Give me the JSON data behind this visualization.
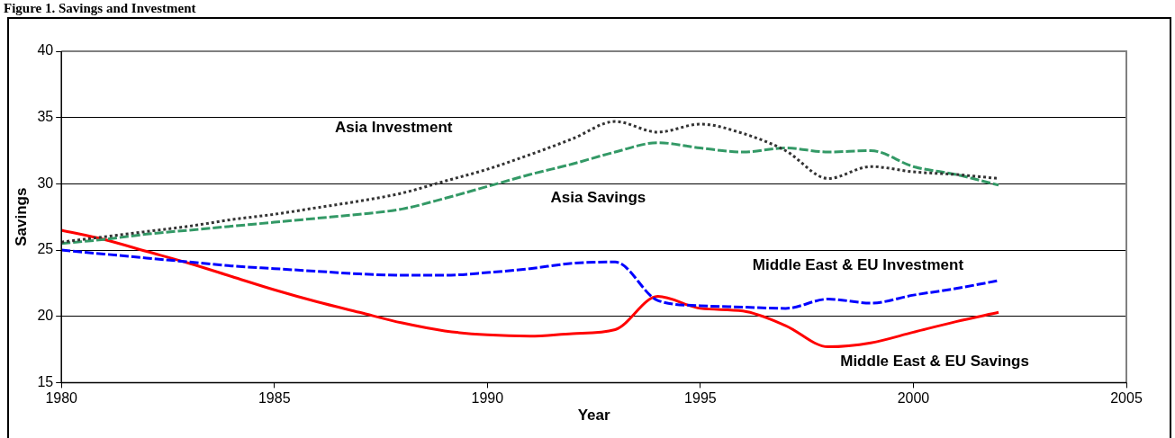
{
  "chart_data": {
    "type": "line",
    "title": "Figure 1. Savings and Investment",
    "xlabel": "Year",
    "ylabel": "Savings",
    "xlim": [
      1980,
      2005
    ],
    "xticks": [
      1980,
      1985,
      1990,
      1995,
      2000,
      2005
    ],
    "ylim": [
      15,
      40
    ],
    "yticks": [
      15,
      20,
      25,
      30,
      35,
      40
    ],
    "grid": "y",
    "legend": false,
    "marker": "none",
    "x": [
      1980,
      1981,
      1982,
      1983,
      1984,
      1985,
      1986,
      1987,
      1988,
      1989,
      1990,
      1991,
      1992,
      1993,
      1994,
      1995,
      1996,
      1997,
      1998,
      1999,
      2000,
      2001,
      2002
    ],
    "series": [
      {
        "name": "Asia Investment",
        "color": "#333333",
        "line_style": "dotted",
        "values": [
          25.6,
          26.0,
          26.4,
          26.8,
          27.3,
          27.7,
          28.2,
          28.7,
          29.3,
          30.2,
          31.1,
          32.2,
          33.4,
          34.7,
          33.9,
          34.5,
          33.8,
          32.5,
          30.4,
          31.3,
          30.9,
          30.7,
          30.4
        ]
      },
      {
        "name": "Asia Savings",
        "color": "#339966",
        "line_style": "dashed",
        "values": [
          25.5,
          25.8,
          26.2,
          26.5,
          26.8,
          27.1,
          27.4,
          27.7,
          28.1,
          28.9,
          29.8,
          30.7,
          31.5,
          32.4,
          33.1,
          32.7,
          32.4,
          32.7,
          32.4,
          32.5,
          31.3,
          30.7,
          29.9
        ]
      },
      {
        "name": "Middle East & EU Investment",
        "color": "#0000ff",
        "line_style": "dashed",
        "values": [
          25.0,
          24.7,
          24.4,
          24.1,
          23.8,
          23.6,
          23.4,
          23.2,
          23.1,
          23.1,
          23.3,
          23.6,
          24.0,
          24.1,
          21.2,
          20.8,
          20.7,
          20.6,
          21.3,
          21.0,
          21.6,
          22.1,
          22.7
        ]
      },
      {
        "name": "Middle East & EU Savings",
        "color": "#ff0000",
        "line_style": "solid",
        "values": [
          26.5,
          25.8,
          24.9,
          24.0,
          23.0,
          22.0,
          21.1,
          20.3,
          19.5,
          18.9,
          18.6,
          18.5,
          18.7,
          19.0,
          21.5,
          20.6,
          20.4,
          19.3,
          17.7,
          18.0,
          18.8,
          19.6,
          20.3
        ]
      }
    ]
  }
}
